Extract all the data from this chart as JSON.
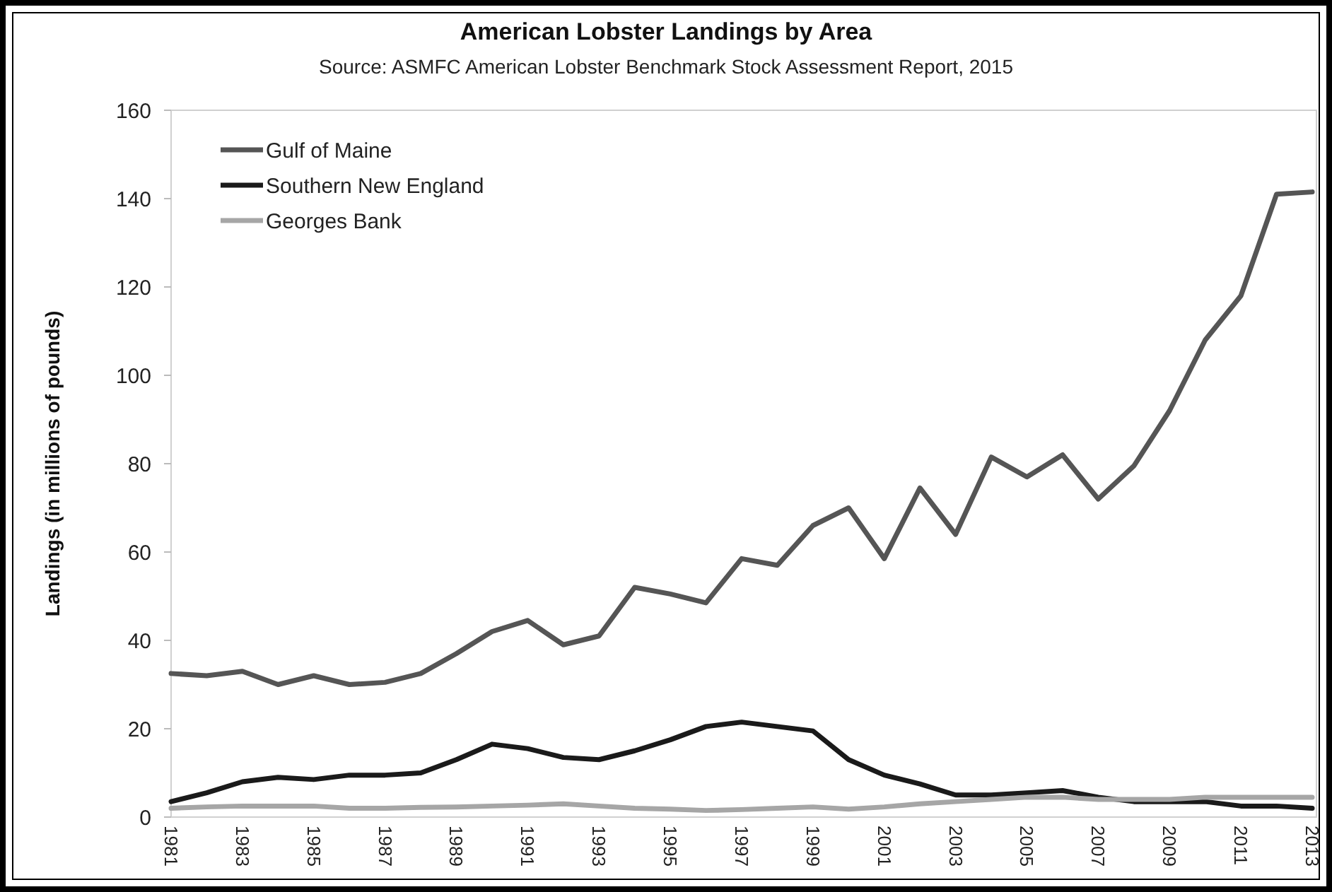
{
  "chart_data": {
    "type": "line",
    "title": "American Lobster Landings by Area",
    "subtitle": "Source: ASMFC American Lobster Benchmark Stock Assessment Report, 2015",
    "ylabel": "Landings (in millions of pounds)",
    "x": [
      1981,
      1982,
      1983,
      1984,
      1985,
      1986,
      1987,
      1988,
      1989,
      1990,
      1991,
      1992,
      1993,
      1994,
      1995,
      1996,
      1997,
      1998,
      1999,
      2000,
      2001,
      2002,
      2003,
      2004,
      2005,
      2006,
      2007,
      2008,
      2009,
      2010,
      2011,
      2012,
      2013
    ],
    "series": [
      {
        "name": "Gulf of Maine",
        "color": "#555555",
        "values": [
          32.5,
          32,
          33,
          30,
          32,
          30,
          30.5,
          32.5,
          37,
          42,
          44.5,
          39,
          41,
          52,
          50.5,
          48.5,
          58.5,
          57,
          66,
          70,
          58.5,
          74.5,
          64,
          81.5,
          77,
          82,
          72,
          79.5,
          92,
          108,
          118,
          141,
          141.5
        ]
      },
      {
        "name": "Southern New England",
        "color": "#1a1a1a",
        "values": [
          3.5,
          5.5,
          8,
          9,
          8.5,
          9.5,
          9.5,
          10,
          13,
          16.5,
          15.5,
          13.5,
          13,
          15,
          17.5,
          20.5,
          21.5,
          20.5,
          19.5,
          13,
          9.5,
          7.5,
          5,
          5,
          5.5,
          6,
          4.5,
          3.5,
          3.5,
          3.5,
          2.5,
          2.5,
          2
        ]
      },
      {
        "name": "Georges Bank",
        "color": "#a6a6a6",
        "values": [
          2,
          2.3,
          2.5,
          2.5,
          2.5,
          2,
          2,
          2.2,
          2.3,
          2.5,
          2.7,
          3,
          2.5,
          2,
          1.8,
          1.5,
          1.7,
          2,
          2.3,
          1.8,
          2.3,
          3,
          3.5,
          4,
          4.5,
          4.5,
          4,
          4,
          4,
          4.5,
          4.5,
          4.5,
          4.5
        ]
      }
    ],
    "xlim": [
      1981,
      2013
    ],
    "xticks": [
      1981,
      1983,
      1985,
      1987,
      1989,
      1991,
      1993,
      1995,
      1997,
      1999,
      2001,
      2003,
      2005,
      2007,
      2009,
      2011,
      2013
    ],
    "ylim": [
      0,
      160
    ],
    "yticks": [
      0,
      20,
      40,
      60,
      80,
      100,
      120,
      140,
      160
    ],
    "grid": false,
    "legend": "top left",
    "marker": "none",
    "line_style": "solid"
  }
}
